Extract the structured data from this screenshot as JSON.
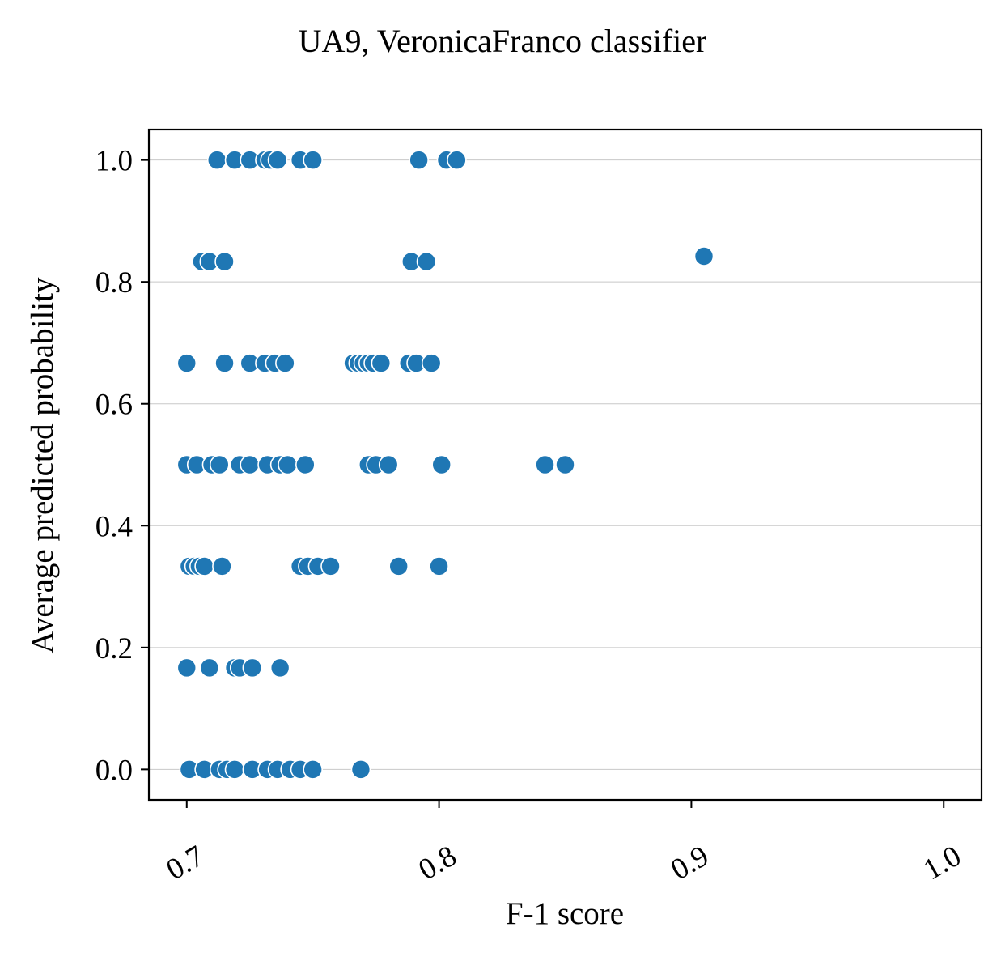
{
  "chart_data": {
    "type": "scatter",
    "title": "UA9, VeronicaFranco classifier",
    "xlabel": "F-1 score",
    "ylabel": "Average predicted probability",
    "xlim": [
      0.685,
      1.015
    ],
    "ylim": [
      -0.05,
      1.05
    ],
    "xticks": [
      "0.7",
      "0.8",
      "0.9",
      "1.0"
    ],
    "yticks": [
      "0.0",
      "0.2",
      "0.4",
      "0.6",
      "0.8",
      "1.0"
    ],
    "grid": "horizontal",
    "marker_color": "#1f77b4",
    "points": [
      {
        "x": 0.712,
        "y": 1.0
      },
      {
        "x": 0.719,
        "y": 1.0
      },
      {
        "x": 0.725,
        "y": 1.0
      },
      {
        "x": 0.731,
        "y": 1.0
      },
      {
        "x": 0.733,
        "y": 1.0
      },
      {
        "x": 0.736,
        "y": 1.0
      },
      {
        "x": 0.745,
        "y": 1.0
      },
      {
        "x": 0.75,
        "y": 1.0
      },
      {
        "x": 0.792,
        "y": 1.0
      },
      {
        "x": 0.803,
        "y": 1.0
      },
      {
        "x": 0.807,
        "y": 1.0
      },
      {
        "x": 0.706,
        "y": 0.8333
      },
      {
        "x": 0.709,
        "y": 0.8333
      },
      {
        "x": 0.715,
        "y": 0.8333
      },
      {
        "x": 0.789,
        "y": 0.8333
      },
      {
        "x": 0.795,
        "y": 0.8333
      },
      {
        "x": 0.905,
        "y": 0.8421
      },
      {
        "x": 0.7,
        "y": 0.6667
      },
      {
        "x": 0.715,
        "y": 0.6667
      },
      {
        "x": 0.725,
        "y": 0.6667
      },
      {
        "x": 0.731,
        "y": 0.6667
      },
      {
        "x": 0.735,
        "y": 0.6667
      },
      {
        "x": 0.739,
        "y": 0.6667
      },
      {
        "x": 0.766,
        "y": 0.6667
      },
      {
        "x": 0.768,
        "y": 0.6667
      },
      {
        "x": 0.77,
        "y": 0.6667
      },
      {
        "x": 0.772,
        "y": 0.6667
      },
      {
        "x": 0.774,
        "y": 0.6667
      },
      {
        "x": 0.777,
        "y": 0.6667
      },
      {
        "x": 0.788,
        "y": 0.6667
      },
      {
        "x": 0.791,
        "y": 0.6667
      },
      {
        "x": 0.797,
        "y": 0.6667
      },
      {
        "x": 0.7,
        "y": 0.5
      },
      {
        "x": 0.704,
        "y": 0.5
      },
      {
        "x": 0.71,
        "y": 0.5
      },
      {
        "x": 0.713,
        "y": 0.5
      },
      {
        "x": 0.721,
        "y": 0.5
      },
      {
        "x": 0.725,
        "y": 0.5
      },
      {
        "x": 0.732,
        "y": 0.5
      },
      {
        "x": 0.737,
        "y": 0.5
      },
      {
        "x": 0.74,
        "y": 0.5
      },
      {
        "x": 0.747,
        "y": 0.5
      },
      {
        "x": 0.772,
        "y": 0.5
      },
      {
        "x": 0.775,
        "y": 0.5
      },
      {
        "x": 0.78,
        "y": 0.5
      },
      {
        "x": 0.801,
        "y": 0.5
      },
      {
        "x": 0.842,
        "y": 0.5
      },
      {
        "x": 0.85,
        "y": 0.5
      },
      {
        "x": 0.701,
        "y": 0.3333
      },
      {
        "x": 0.703,
        "y": 0.3333
      },
      {
        "x": 0.705,
        "y": 0.3333
      },
      {
        "x": 0.707,
        "y": 0.3333
      },
      {
        "x": 0.714,
        "y": 0.3333
      },
      {
        "x": 0.745,
        "y": 0.3333
      },
      {
        "x": 0.748,
        "y": 0.3333
      },
      {
        "x": 0.752,
        "y": 0.3333
      },
      {
        "x": 0.757,
        "y": 0.3333
      },
      {
        "x": 0.784,
        "y": 0.3333
      },
      {
        "x": 0.8,
        "y": 0.3333
      },
      {
        "x": 0.7,
        "y": 0.1667
      },
      {
        "x": 0.709,
        "y": 0.1667
      },
      {
        "x": 0.719,
        "y": 0.1667
      },
      {
        "x": 0.721,
        "y": 0.1667
      },
      {
        "x": 0.726,
        "y": 0.1667
      },
      {
        "x": 0.737,
        "y": 0.1667
      },
      {
        "x": 0.701,
        "y": 0.0
      },
      {
        "x": 0.707,
        "y": 0.0
      },
      {
        "x": 0.713,
        "y": 0.0
      },
      {
        "x": 0.716,
        "y": 0.0
      },
      {
        "x": 0.719,
        "y": 0.0
      },
      {
        "x": 0.726,
        "y": 0.0
      },
      {
        "x": 0.732,
        "y": 0.0
      },
      {
        "x": 0.736,
        "y": 0.0
      },
      {
        "x": 0.741,
        "y": 0.0
      },
      {
        "x": 0.745,
        "y": 0.0
      },
      {
        "x": 0.75,
        "y": 0.0
      },
      {
        "x": 0.769,
        "y": 0.0
      }
    ]
  }
}
